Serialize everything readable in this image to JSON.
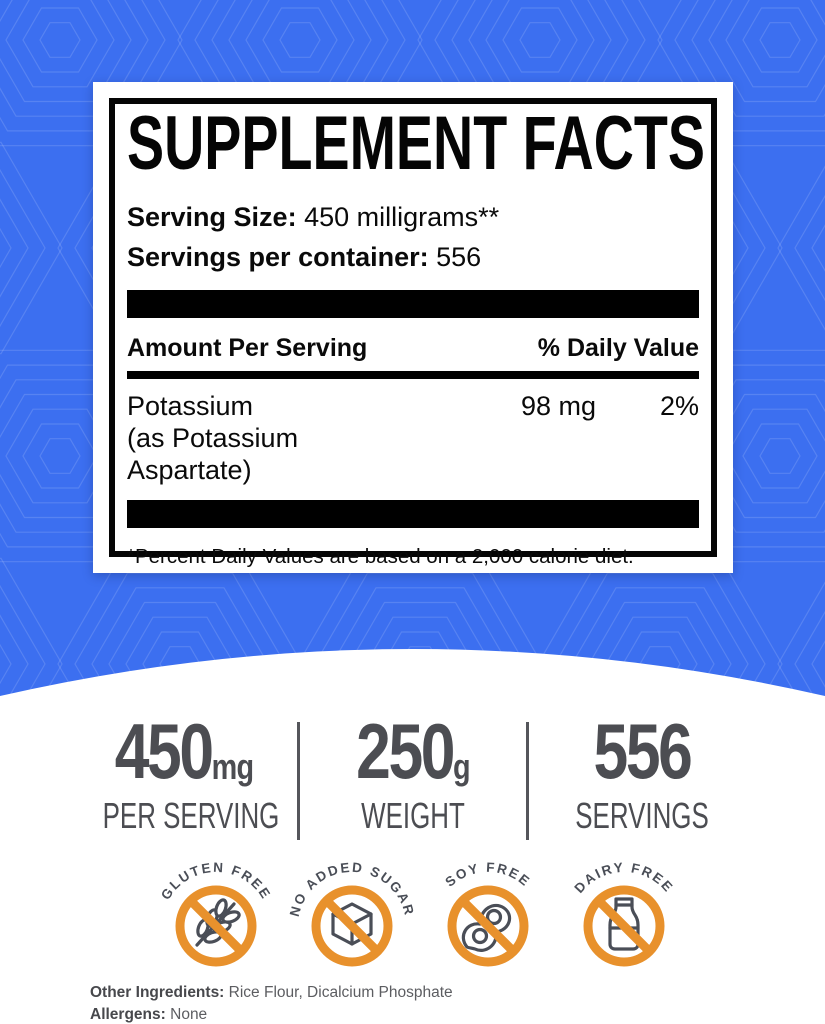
{
  "label": {
    "title": "SUPPLEMENT FACTS",
    "serving_size_label": "Serving Size:",
    "serving_size_value": "450 milligrams**",
    "servings_label": "Servings per container:",
    "servings_value": "556",
    "header_amount": "Amount Per Serving",
    "header_dv": "% Daily Value",
    "rows": [
      {
        "name": "Potassium",
        "detail": "(as Potassium Aspartate)",
        "amount": "98 mg",
        "dv": "2%"
      }
    ],
    "footnote": "*Percent Daily Values are based on a 2,000 calorie diet."
  },
  "stats": [
    {
      "value": "450",
      "unit": "mg",
      "label": "PER SERVING"
    },
    {
      "value": "250",
      "unit": "g",
      "label": "WEIGHT"
    },
    {
      "value": "556",
      "unit": "",
      "label": "SERVINGS"
    }
  ],
  "badges": [
    {
      "label": "GLUTEN FREE",
      "icon": "wheat-icon"
    },
    {
      "label": "NO ADDED SUGAR",
      "icon": "sugar-cube-icon"
    },
    {
      "label": "SOY FREE",
      "icon": "soybean-icon"
    },
    {
      "label": "DAIRY FREE",
      "icon": "milk-bottle-icon"
    }
  ],
  "ingredients": {
    "other_label": "Other Ingredients:",
    "other_value": "Rice Flour, Dicalcium Phosphate",
    "allergens_label": "Allergens:",
    "allergens_value": "None"
  },
  "colors": {
    "background_blue": "#3C6FF0",
    "badge_orange": "#E8912C",
    "stat_gray": "#4C4D52",
    "glyph_gray": "#4A4E57"
  }
}
